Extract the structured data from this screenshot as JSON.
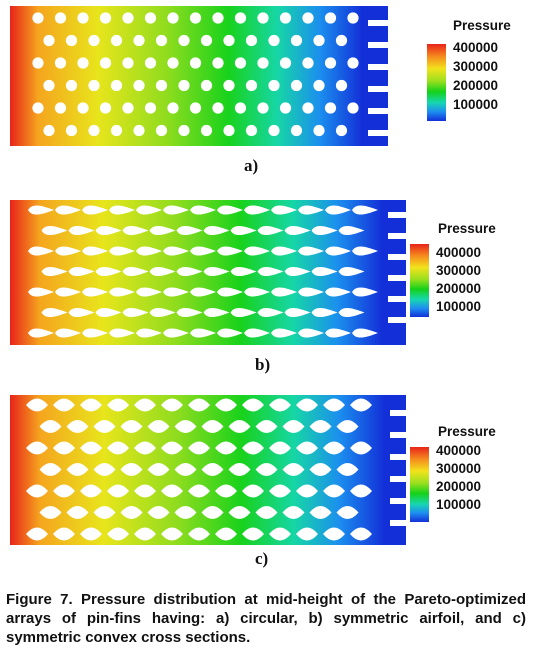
{
  "figure": {
    "panels": [
      {
        "id": "a",
        "label": "a)",
        "cross_section": "circular",
        "legend_title": "Pressure",
        "legend_ticks": [
          "400000",
          "300000",
          "200000",
          "100000"
        ]
      },
      {
        "id": "b",
        "label": "b)",
        "cross_section": "symmetric airfoil",
        "legend_title": "Pressure",
        "legend_ticks": [
          "400000",
          "300000",
          "200000",
          "100000"
        ]
      },
      {
        "id": "c",
        "label": "c)",
        "cross_section": "symmetric convex",
        "legend_title": "Pressure",
        "legend_ticks": [
          "400000",
          "300000",
          "200000",
          "100000"
        ]
      }
    ],
    "caption": "Figure 7. Pressure distribution at mid-height of the Pareto-optimized arrays of pin-fins having: a) circular, b) symmetric airfoil, and c) symmetric convex cross sections."
  },
  "colors": {
    "high": "#e8231a",
    "mid_high": "#f2e21c",
    "mid": "#14d11a",
    "low": "#1330d8",
    "fin": "#ffffff"
  }
}
